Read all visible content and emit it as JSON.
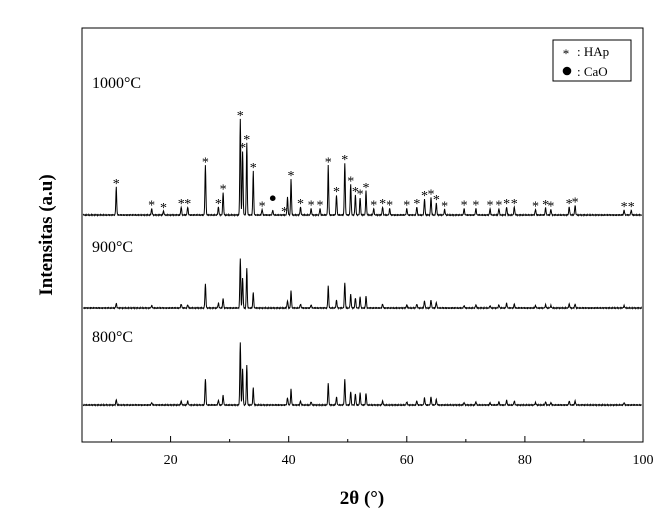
{
  "chart_data": {
    "type": "line",
    "xlabel": "2θ (°)",
    "ylabel": "Intensitas (a.u)",
    "xlim": [
      5,
      100
    ],
    "xticks": [
      20,
      40,
      60,
      80,
      100
    ],
    "y_ticks_labeled": false,
    "grid": false,
    "legend": {
      "placement": "top-right",
      "entries": [
        {
          "marker": "*",
          "label": ": HAp"
        },
        {
          "marker": "●",
          "label": ": CaO"
        }
      ]
    },
    "series": [
      {
        "name": "1000°C",
        "baseline": 0,
        "peaks": [
          [
            10.8,
            35
          ],
          [
            16.8,
            8
          ],
          [
            18.8,
            5
          ],
          [
            21.8,
            10
          ],
          [
            22.9,
            10
          ],
          [
            25.9,
            62
          ],
          [
            28.1,
            10
          ],
          [
            28.9,
            28
          ],
          [
            31.8,
            120
          ],
          [
            32.2,
            80
          ],
          [
            32.9,
            90
          ],
          [
            34.0,
            55
          ],
          [
            35.5,
            7
          ],
          [
            37.3,
            6
          ],
          [
            39.8,
            22
          ],
          [
            40.4,
            45
          ],
          [
            42.0,
            10
          ],
          [
            43.8,
            8
          ],
          [
            45.3,
            8
          ],
          [
            46.7,
            62
          ],
          [
            48.1,
            25
          ],
          [
            49.5,
            65
          ],
          [
            50.5,
            38
          ],
          [
            51.3,
            25
          ],
          [
            52.1,
            22
          ],
          [
            53.1,
            30
          ],
          [
            54.4,
            8
          ],
          [
            55.9,
            10
          ],
          [
            57.1,
            8
          ],
          [
            60.0,
            8
          ],
          [
            61.7,
            10
          ],
          [
            63.0,
            20
          ],
          [
            64.1,
            22
          ],
          [
            65.0,
            15
          ],
          [
            66.4,
            7
          ],
          [
            69.7,
            8
          ],
          [
            71.7,
            8
          ],
          [
            74.1,
            8
          ],
          [
            75.6,
            8
          ],
          [
            76.9,
            10
          ],
          [
            78.2,
            10
          ],
          [
            81.8,
            7
          ],
          [
            83.5,
            9
          ],
          [
            84.4,
            7
          ],
          [
            87.5,
            10
          ],
          [
            88.5,
            12
          ],
          [
            96.8,
            6
          ],
          [
            98.0,
            6
          ]
        ]
      },
      {
        "name": "900°C",
        "baseline": 0,
        "peaks": [
          [
            10.8,
            6
          ],
          [
            16.8,
            3
          ],
          [
            21.8,
            5
          ],
          [
            22.9,
            4
          ],
          [
            25.9,
            30
          ],
          [
            28.1,
            6
          ],
          [
            28.9,
            12
          ],
          [
            31.8,
            62
          ],
          [
            32.2,
            38
          ],
          [
            32.9,
            50
          ],
          [
            34.0,
            20
          ],
          [
            39.8,
            9
          ],
          [
            40.4,
            22
          ],
          [
            42.0,
            5
          ],
          [
            43.8,
            4
          ],
          [
            46.7,
            28
          ],
          [
            48.1,
            10
          ],
          [
            49.5,
            32
          ],
          [
            50.5,
            17
          ],
          [
            51.3,
            13
          ],
          [
            52.1,
            14
          ],
          [
            53.1,
            15
          ],
          [
            55.9,
            5
          ],
          [
            60.0,
            4
          ],
          [
            61.7,
            5
          ],
          [
            63.0,
            9
          ],
          [
            64.1,
            10
          ],
          [
            65.0,
            7
          ],
          [
            69.7,
            3
          ],
          [
            71.7,
            4
          ],
          [
            74.1,
            3
          ],
          [
            75.6,
            4
          ],
          [
            76.9,
            6
          ],
          [
            78.2,
            5
          ],
          [
            81.8,
            3
          ],
          [
            83.5,
            4
          ],
          [
            84.4,
            3
          ],
          [
            87.5,
            5
          ],
          [
            88.5,
            5
          ],
          [
            96.8,
            3
          ]
        ]
      },
      {
        "name": "800°C",
        "baseline": 0,
        "peaks": [
          [
            10.8,
            7
          ],
          [
            16.8,
            3
          ],
          [
            21.8,
            5
          ],
          [
            22.9,
            5
          ],
          [
            25.9,
            33
          ],
          [
            28.1,
            6
          ],
          [
            28.9,
            12
          ],
          [
            31.8,
            78
          ],
          [
            32.2,
            45
          ],
          [
            32.9,
            50
          ],
          [
            34.0,
            22
          ],
          [
            39.8,
            9
          ],
          [
            40.4,
            20
          ],
          [
            42.0,
            5
          ],
          [
            43.8,
            4
          ],
          [
            46.7,
            28
          ],
          [
            48.1,
            10
          ],
          [
            49.5,
            32
          ],
          [
            50.5,
            17
          ],
          [
            51.3,
            14
          ],
          [
            52.1,
            15
          ],
          [
            53.1,
            15
          ],
          [
            55.9,
            5
          ],
          [
            60.0,
            4
          ],
          [
            61.7,
            5
          ],
          [
            63.0,
            9
          ],
          [
            64.1,
            10
          ],
          [
            65.0,
            7
          ],
          [
            69.7,
            3
          ],
          [
            71.7,
            4
          ],
          [
            74.1,
            3
          ],
          [
            75.6,
            4
          ],
          [
            76.9,
            6
          ],
          [
            78.2,
            5
          ],
          [
            81.8,
            3
          ],
          [
            83.5,
            4
          ],
          [
            84.4,
            3
          ],
          [
            87.5,
            5
          ],
          [
            88.5,
            5
          ],
          [
            96.8,
            3
          ]
        ]
      }
    ],
    "annotations": {
      "hap_star_positions": [
        10.8,
        16.8,
        18.8,
        21.8,
        22.9,
        25.9,
        28.1,
        28.9,
        31.8,
        32.2,
        32.9,
        34.0,
        35.5,
        39.3,
        40.4,
        42.0,
        43.8,
        45.3,
        46.7,
        48.1,
        49.5,
        50.5,
        51.3,
        52.1,
        53.1,
        54.4,
        55.9,
        57.1,
        60.0,
        61.7,
        63.0,
        64.1,
        65.0,
        66.4,
        69.7,
        71.7,
        74.1,
        75.6,
        76.9,
        78.2,
        81.8,
        83.5,
        84.4,
        87.5,
        88.5,
        96.8,
        98.0
      ],
      "cao_dot_positions": [
        37.3
      ],
      "star_glyph": "*",
      "dot_glyph": "●"
    },
    "colors": {
      "line": "#000000",
      "background": "#ffffff"
    }
  }
}
